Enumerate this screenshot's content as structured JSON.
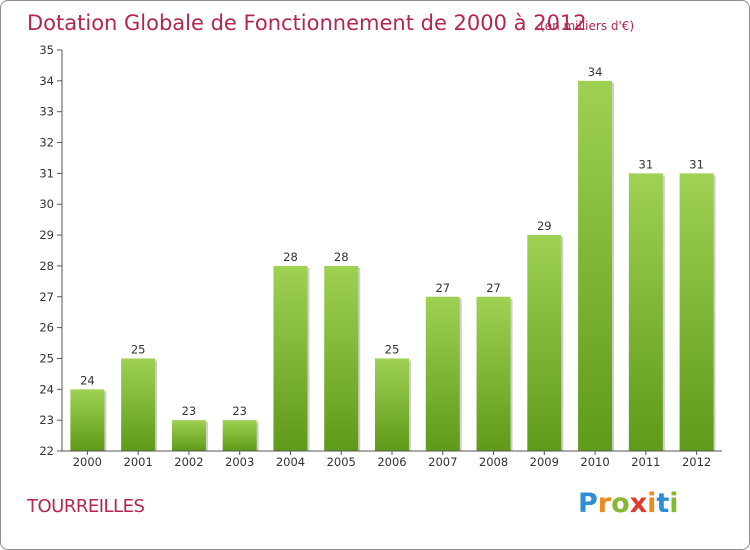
{
  "chart_data": {
    "type": "bar",
    "title": "Dotation Globale de Fonctionnement de 2000 à 2012",
    "subtitle": "(en milliers d'€)",
    "categories": [
      "2000",
      "2001",
      "2002",
      "2003",
      "2004",
      "2005",
      "2006",
      "2007",
      "2008",
      "2009",
      "2010",
      "2011",
      "2012"
    ],
    "values": [
      24,
      25,
      23,
      23,
      28,
      28,
      25,
      27,
      27,
      29,
      34,
      31,
      31
    ],
    "ylim": [
      22,
      35
    ],
    "yticks": [
      22,
      23,
      24,
      25,
      26,
      27,
      28,
      29,
      30,
      31,
      32,
      33,
      34,
      35
    ],
    "grid": false,
    "bar_color": "#7fbb2f",
    "bar_color_light": "#9fd153",
    "bar_color_dark": "#5f9a18"
  },
  "location": "TOURREILLES",
  "brand": {
    "letters": [
      "P",
      "r",
      "o",
      "x",
      "i",
      "t",
      "i"
    ],
    "colors": [
      "#2d8fd5",
      "#f08a1c",
      "#84b832",
      "#e03a2e",
      "#f08a1c",
      "#2d8fd5",
      "#84b832"
    ]
  }
}
